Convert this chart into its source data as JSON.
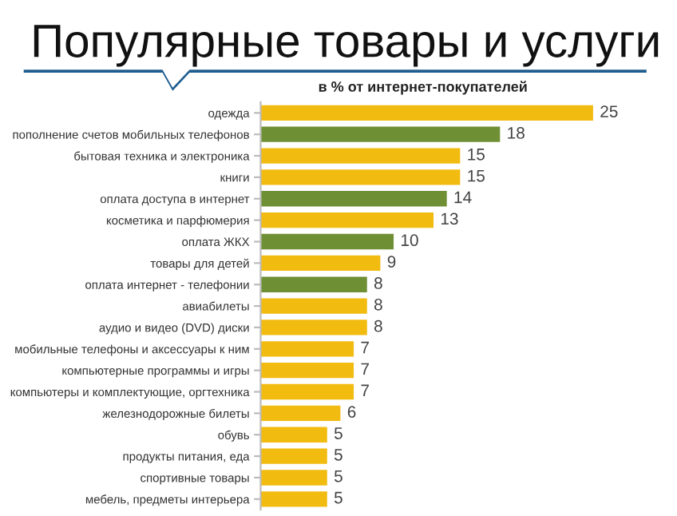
{
  "chart_data": {
    "type": "bar",
    "orientation": "horizontal",
    "title": "Популярные товары и услуги",
    "subtitle": "в % от интернет-покупателей",
    "categories": [
      "одежда",
      "пополнение счетов мобильных телефонов",
      "бытовая техника и электроника",
      "книги",
      "оплата доступа в интернет",
      "косметика и парфюмерия",
      "оплата ЖКХ",
      "товары для детей",
      "оплата интернет - телефонии",
      "авиабилеты",
      "аудио и видео (DVD) диски",
      "мобильные телефоны и аксессуары к ним",
      "компьютерные программы и игры",
      "компьютеры и комплектующие, оргтехника",
      "железнодорожные билеты",
      "обувь",
      "продукты питания, еда",
      "спортивные товары",
      "мебель, предметы интерьера"
    ],
    "values": [
      25,
      18,
      15,
      15,
      14,
      13,
      10,
      9,
      8,
      8,
      8,
      7,
      7,
      7,
      6,
      5,
      5,
      5,
      5
    ],
    "colors": [
      "#f2bb10",
      "#6f8f35",
      "#f2bb10",
      "#f2bb10",
      "#6f8f35",
      "#f2bb10",
      "#6f8f35",
      "#f2bb10",
      "#6f8f35",
      "#f2bb10",
      "#f2bb10",
      "#f2bb10",
      "#f2bb10",
      "#f2bb10",
      "#f2bb10",
      "#f2bb10",
      "#f2bb10",
      "#f2bb10",
      "#f2bb10"
    ],
    "data_labels": true,
    "grid": false,
    "legend": false
  }
}
